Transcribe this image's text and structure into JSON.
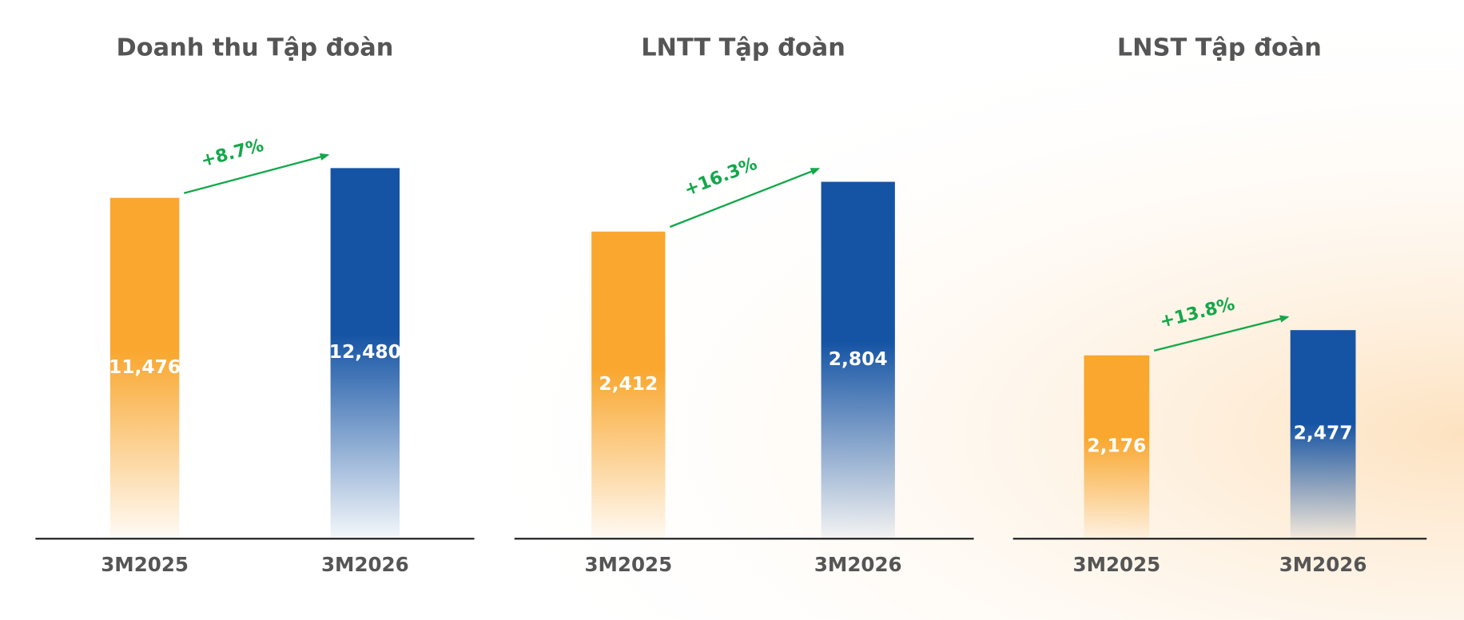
{
  "chart_data": [
    {
      "type": "bar",
      "title": "Doanh thu Tập đoàn",
      "categories": [
        "3M2025",
        "3M2026"
      ],
      "values": [
        11476,
        12480
      ],
      "value_labels": [
        "11,476",
        "12,480"
      ],
      "colors": [
        "#f9a72f",
        "#1554a4"
      ],
      "ylim": [
        0,
        15000
      ],
      "annotation": "+8.7%"
    },
    {
      "type": "bar",
      "title": "LNTT Tập đoàn",
      "categories": [
        "3M2025",
        "3M2026"
      ],
      "values": [
        2412,
        2804
      ],
      "value_labels": [
        "2,412",
        "2,804"
      ],
      "colors": [
        "#f9a72f",
        "#1554a4"
      ],
      "ylim": [
        0,
        3500
      ],
      "annotation": "+16.3%"
    },
    {
      "type": "bar",
      "title": "LNST Tập đoàn",
      "categories": [
        "3M2025",
        "3M2026"
      ],
      "values": [
        2176,
        2477
      ],
      "value_labels": [
        "2,176",
        "2,477"
      ],
      "colors": [
        "#f9a72f",
        "#1554a4"
      ],
      "ylim": [
        0,
        5300
      ],
      "annotation": "+13.8%"
    }
  ]
}
